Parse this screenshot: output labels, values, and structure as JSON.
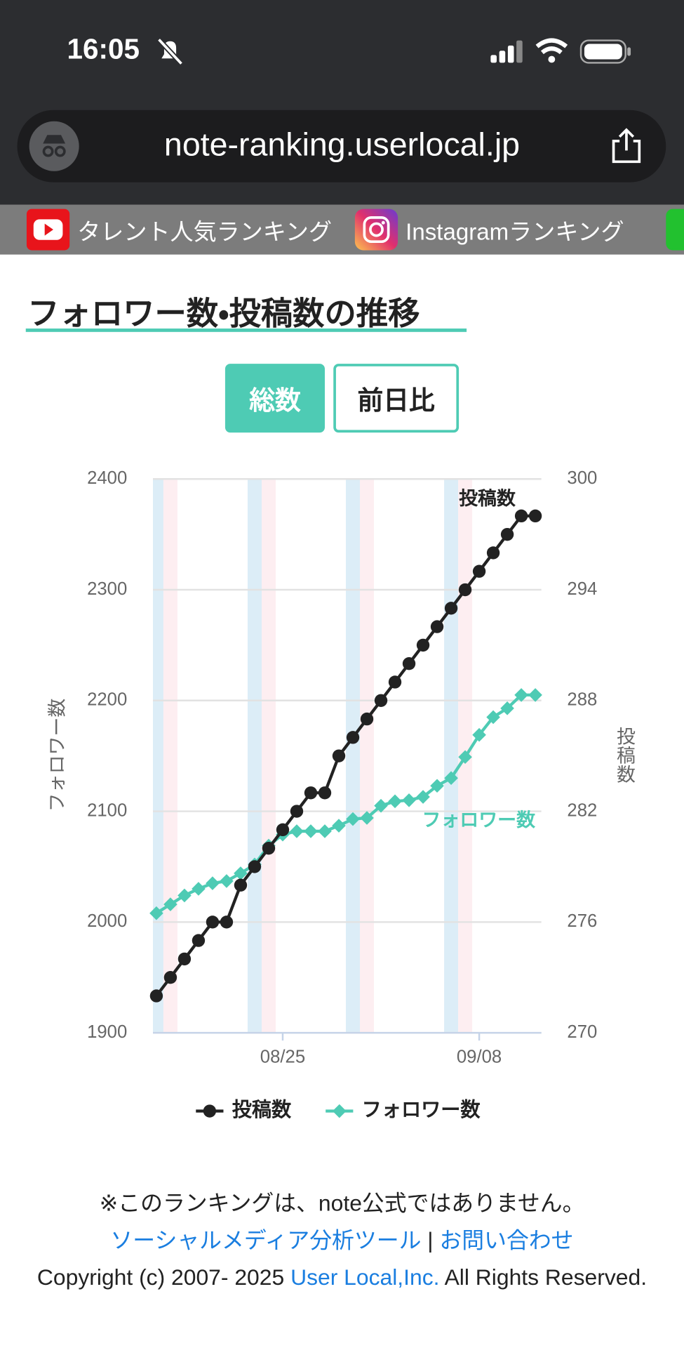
{
  "status_bar": {
    "time": "16:05"
  },
  "browser": {
    "url": "note-ranking.userlocal.jp"
  },
  "tabs": [
    "タレント人気ランキング",
    "Instagramランキング"
  ],
  "section": {
    "title": "フォロワー数・投稿数の推移",
    "buttons": [
      "総数",
      "前日比"
    ]
  },
  "chart_data": {
    "type": "line",
    "categories": [
      null,
      null,
      null,
      null,
      null,
      null,
      null,
      null,
      null,
      "08/25",
      null,
      null,
      null,
      null,
      null,
      null,
      null,
      null,
      null,
      null,
      null,
      null,
      null,
      "09/08",
      null,
      null,
      null,
      null
    ],
    "series": [
      {
        "name": "投稿数",
        "color": "#222222",
        "marker": "circle",
        "axis": "y2",
        "values": [
          272,
          273,
          274,
          275,
          276,
          276,
          278,
          279,
          280,
          281,
          282,
          283,
          283,
          285,
          286,
          287,
          288,
          289,
          290,
          291,
          292,
          293,
          294,
          295,
          296,
          297,
          298,
          298
        ]
      },
      {
        "name": "フォロワー数",
        "color": "#4ecbb4",
        "marker": "diamond",
        "axis": "y",
        "values": [
          2008,
          2016,
          2024,
          2030,
          2035,
          2037,
          2044,
          2052,
          2069,
          2079,
          2082,
          2082,
          2082,
          2087,
          2093,
          2094,
          2105,
          2109,
          2110,
          2113,
          2123,
          2130,
          2149,
          2169,
          2185,
          2193,
          2205,
          2205
        ]
      }
    ],
    "ylabel": "フォロワー数",
    "y2label": "投稿数",
    "ylim": [
      1900,
      2400
    ],
    "yticks": [
      1900,
      2000,
      2100,
      2200,
      2300,
      2400
    ],
    "y2lim": [
      270,
      300
    ],
    "y2ticks": [
      270,
      276,
      282,
      288,
      294,
      300
    ],
    "annotations": [
      "投稿数",
      "フォロワー数"
    ],
    "grid": true,
    "legend": "bottom"
  },
  "footer": {
    "notice": "※このランキングは、note公式ではありません。",
    "links": [
      "ソーシャルメディア分析ツール",
      "お問い合わせ"
    ],
    "separator": "|",
    "copyright": "Copyright (c) 2007- 2025",
    "company": "User Local,Inc.",
    "rights": "All Rights Reserved."
  }
}
